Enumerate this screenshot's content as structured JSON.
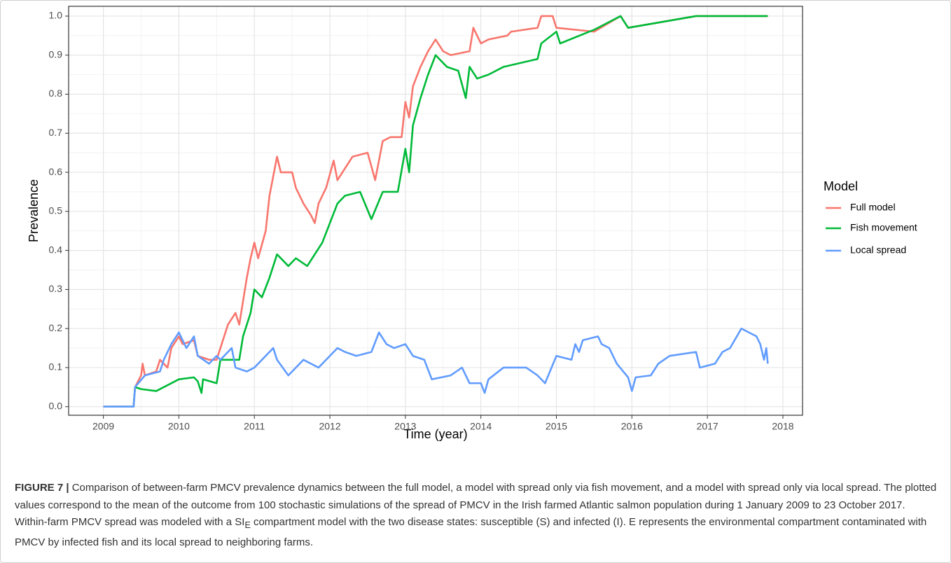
{
  "chart_data": {
    "type": "line",
    "x_label": "Time (year)",
    "y_label": "Prevalence",
    "legend_title": "Model",
    "xlim": [
      2008.54,
      2018.26
    ],
    "ylim": [
      -0.022,
      1.025
    ],
    "xticks": [
      2009,
      2010,
      2011,
      2012,
      2013,
      2014,
      2015,
      2016,
      2017,
      2018
    ],
    "yticks": [
      {
        "value": 0,
        "label": "0.0"
      },
      0.1,
      0.2,
      0.3,
      0.4,
      0.5,
      0.6,
      0.7,
      0.8,
      0.9,
      {
        "value": 1,
        "label": "1.0"
      }
    ],
    "x_minor_ticks": [
      2009.5,
      2010.5,
      2011.5,
      2012.5,
      2013.5,
      2014.5,
      2015.5,
      2016.5,
      2017.5
    ],
    "y_minor_ticks": [
      0.05,
      0.15,
      0.25,
      0.35,
      0.45,
      0.55,
      0.65,
      0.75,
      0.85,
      0.95
    ],
    "grid": true,
    "legend": "right",
    "series": [
      {
        "name": "Full model",
        "color": "#F8766D",
        "x": [
          2009.0,
          2009.4,
          2009.42,
          2009.5,
          2009.52,
          2009.55,
          2009.7,
          2009.75,
          2009.85,
          2009.9,
          2010.0,
          2010.05,
          2010.2,
          2010.25,
          2010.4,
          2010.5,
          2010.55,
          2010.65,
          2010.75,
          2010.8,
          2010.85,
          2010.9,
          2010.95,
          2011.0,
          2011.05,
          2011.15,
          2011.2,
          2011.3,
          2011.35,
          2011.5,
          2011.55,
          2011.65,
          2011.75,
          2011.8,
          2011.85,
          2011.95,
          2012.05,
          2012.1,
          2012.2,
          2012.3,
          2012.5,
          2012.6,
          2012.7,
          2012.8,
          2012.95,
          2013.0,
          2013.05,
          2013.1,
          2013.2,
          2013.3,
          2013.4,
          2013.5,
          2013.6,
          2013.85,
          2013.9,
          2014.0,
          2014.1,
          2014.35,
          2014.4,
          2014.75,
          2014.8,
          2014.95,
          2015.0,
          2015.5,
          2015.85,
          2015.95,
          2016.85,
          2017.8
        ],
        "values": [
          0,
          0,
          0.05,
          0.08,
          0.11,
          0.08,
          0.09,
          0.12,
          0.1,
          0.15,
          0.18,
          0.16,
          0.17,
          0.13,
          0.12,
          0.12,
          0.15,
          0.21,
          0.24,
          0.21,
          0.27,
          0.33,
          0.38,
          0.42,
          0.38,
          0.45,
          0.54,
          0.64,
          0.6,
          0.6,
          0.56,
          0.52,
          0.49,
          0.47,
          0.52,
          0.56,
          0.63,
          0.58,
          0.61,
          0.64,
          0.65,
          0.58,
          0.68,
          0.69,
          0.69,
          0.78,
          0.74,
          0.82,
          0.87,
          0.91,
          0.94,
          0.91,
          0.9,
          0.91,
          0.97,
          0.93,
          0.94,
          0.95,
          0.96,
          0.97,
          1.0,
          1.0,
          0.97,
          0.96,
          1.0,
          0.97,
          1.0,
          1.0
        ]
      },
      {
        "name": "Fish movement",
        "color": "#00BA38",
        "x": [
          2009.0,
          2009.4,
          2009.42,
          2009.5,
          2009.7,
          2010.0,
          2010.2,
          2010.25,
          2010.3,
          2010.32,
          2010.5,
          2010.55,
          2010.8,
          2010.85,
          2010.95,
          2011.0,
          2011.1,
          2011.2,
          2011.3,
          2011.45,
          2011.55,
          2011.7,
          2011.9,
          2012.0,
          2012.1,
          2012.2,
          2012.4,
          2012.55,
          2012.7,
          2012.9,
          2013.0,
          2013.05,
          2013.1,
          2013.2,
          2013.3,
          2013.4,
          2013.55,
          2013.7,
          2013.8,
          2013.85,
          2013.95,
          2014.1,
          2014.3,
          2014.75,
          2014.8,
          2015.0,
          2015.05,
          2015.5,
          2015.85,
          2015.95,
          2016.85,
          2017.8
        ],
        "values": [
          0,
          0,
          0.05,
          0.045,
          0.04,
          0.07,
          0.075,
          0.065,
          0.035,
          0.07,
          0.06,
          0.12,
          0.12,
          0.18,
          0.24,
          0.3,
          0.28,
          0.33,
          0.39,
          0.36,
          0.38,
          0.36,
          0.42,
          0.47,
          0.52,
          0.54,
          0.55,
          0.48,
          0.55,
          0.55,
          0.66,
          0.6,
          0.72,
          0.79,
          0.85,
          0.9,
          0.87,
          0.86,
          0.79,
          0.87,
          0.84,
          0.85,
          0.87,
          0.89,
          0.93,
          0.96,
          0.93,
          0.965,
          1.0,
          0.97,
          1.0,
          1.0
        ]
      },
      {
        "name": "Local spread",
        "color": "#619CFF",
        "x": [
          2009.0,
          2009.4,
          2009.42,
          2009.55,
          2009.75,
          2009.8,
          2009.9,
          2010.0,
          2010.1,
          2010.2,
          2010.25,
          2010.4,
          2010.5,
          2010.55,
          2010.7,
          2010.75,
          2010.9,
          2011.0,
          2011.1,
          2011.25,
          2011.3,
          2011.45,
          2011.65,
          2011.85,
          2012.0,
          2012.1,
          2012.2,
          2012.35,
          2012.55,
          2012.65,
          2012.75,
          2012.85,
          2013.0,
          2013.1,
          2013.25,
          2013.35,
          2013.6,
          2013.75,
          2013.85,
          2014.0,
          2014.05,
          2014.1,
          2014.3,
          2014.6,
          2014.75,
          2014.85,
          2015.0,
          2015.2,
          2015.25,
          2015.3,
          2015.35,
          2015.55,
          2015.6,
          2015.7,
          2015.8,
          2015.95,
          2016.0,
          2016.05,
          2016.25,
          2016.35,
          2016.5,
          2016.85,
          2016.9,
          2017.1,
          2017.2,
          2017.3,
          2017.45,
          2017.55,
          2017.65,
          2017.7,
          2017.75,
          2017.78,
          2017.8
        ],
        "values": [
          0,
          0,
          0.05,
          0.08,
          0.09,
          0.12,
          0.16,
          0.19,
          0.15,
          0.18,
          0.13,
          0.11,
          0.13,
          0.12,
          0.15,
          0.1,
          0.09,
          0.1,
          0.12,
          0.15,
          0.12,
          0.08,
          0.12,
          0.1,
          0.13,
          0.15,
          0.14,
          0.13,
          0.14,
          0.19,
          0.16,
          0.15,
          0.16,
          0.13,
          0.12,
          0.07,
          0.08,
          0.1,
          0.06,
          0.06,
          0.035,
          0.07,
          0.1,
          0.1,
          0.08,
          0.06,
          0.13,
          0.12,
          0.16,
          0.14,
          0.17,
          0.18,
          0.16,
          0.15,
          0.11,
          0.075,
          0.04,
          0.075,
          0.08,
          0.11,
          0.13,
          0.14,
          0.1,
          0.11,
          0.14,
          0.15,
          0.2,
          0.19,
          0.18,
          0.16,
          0.12,
          0.15,
          0.11
        ]
      }
    ]
  },
  "caption": {
    "label": "FIGURE 7 |",
    "text_1": "Comparison of between-farm PMCV prevalence dynamics between the full model, a model with spread only via fish movement, and a model with spread only via local spread. The plotted values correspond to the mean of the outcome from 100 stochastic simulations of the spread of PMCV in the Irish farmed Atlantic salmon population during 1 January 2009 to 23 October 2017. Within-farm PMCV spread was modeled with a SI",
    "subscript": "E",
    "text_2": " compartment model with the two disease states: susceptible (S) and infected (I). E represents the environmental compartment contaminated with PMCV by infected fish and its local spread to neighboring farms."
  }
}
